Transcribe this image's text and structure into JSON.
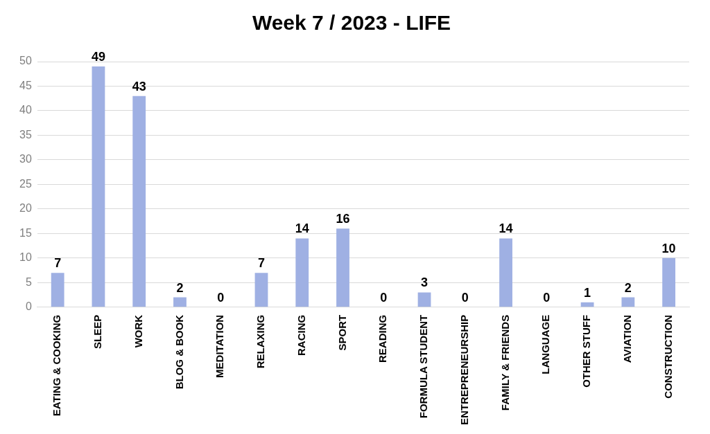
{
  "chart_data": {
    "type": "bar",
    "title": "Week 7 / 2023 - LIFE",
    "categories": [
      "EATING & COOKING",
      "SLEEP",
      "WORK",
      "BLOG & BOOK",
      "MEDITATION",
      "RELAXING",
      "RACING",
      "SPORT",
      "READING",
      "FORMULA STUDENT",
      "ENTREPRENEURSHIP",
      "FAMILY & FRIENDS",
      "LANGUAGE",
      "OTHER STUFF",
      "AVIATION",
      "CONSTRUCTION"
    ],
    "values": [
      7,
      49,
      43,
      2,
      0,
      7,
      14,
      16,
      0,
      3,
      0,
      14,
      0,
      1,
      2,
      10
    ],
    "color": "#9fb0e3",
    "ylim": [
      0,
      50
    ],
    "yticks": [
      0,
      5,
      10,
      15,
      20,
      25,
      30,
      35,
      40,
      45,
      50
    ],
    "grid": "y",
    "legend": false,
    "data_labels": true
  }
}
